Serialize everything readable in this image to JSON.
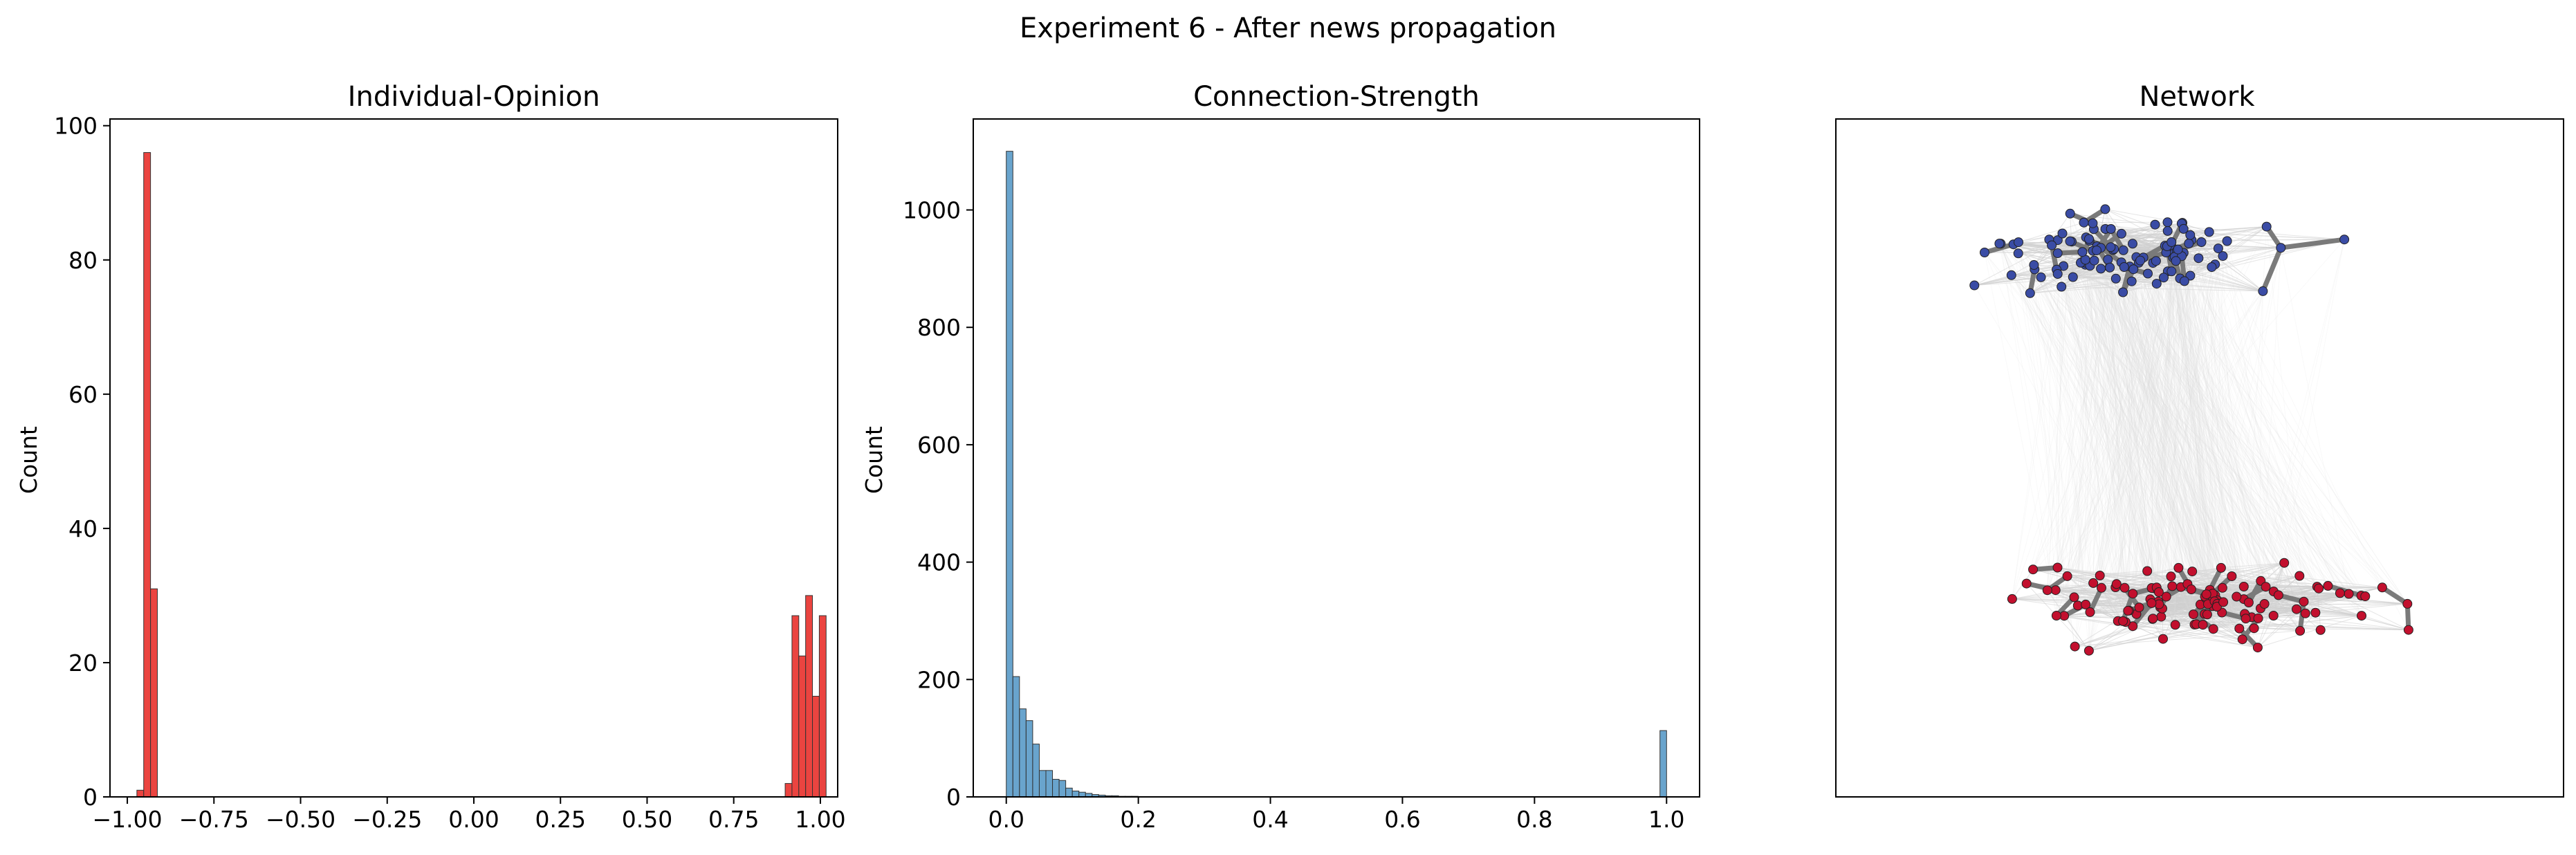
{
  "figure": {
    "title": "Experiment 6 - After news propagation"
  },
  "chart_data": [
    {
      "type": "bar",
      "title": "Individual-Opinion",
      "xlabel": "",
      "ylabel": "Count",
      "xlim": [
        -1.05,
        1.05
      ],
      "ylim": [
        0,
        101
      ],
      "xticks": [
        -1.0,
        -0.75,
        -0.5,
        -0.25,
        0.0,
        0.25,
        0.5,
        0.75,
        1.0
      ],
      "xtick_labels": [
        "−1.00",
        "−0.75",
        "−0.50",
        "−0.25",
        "0.00",
        "0.25",
        "0.50",
        "0.75",
        "1.00"
      ],
      "yticks": [
        0,
        20,
        40,
        60,
        80,
        100
      ],
      "ytick_labels": [
        "0",
        "20",
        "40",
        "60",
        "80",
        "100"
      ],
      "bin_width": 0.0197,
      "bins": [
        {
          "x": -0.9724,
          "count": 1
        },
        {
          "x": -0.9527,
          "count": 96
        },
        {
          "x": -0.933,
          "count": 31
        },
        {
          "x": 0.8984,
          "count": 2
        },
        {
          "x": 0.9181,
          "count": 27
        },
        {
          "x": 0.9378,
          "count": 21
        },
        {
          "x": 0.9575,
          "count": 30
        },
        {
          "x": 0.9772,
          "count": 15
        },
        {
          "x": 0.9969,
          "count": 27
        }
      ],
      "color": "#e8231f",
      "grid": false
    },
    {
      "type": "bar",
      "title": "Connection-Strength",
      "xlabel": "",
      "ylabel": "Count",
      "xlim": [
        -0.05,
        1.05
      ],
      "ylim": [
        0,
        1155
      ],
      "xticks": [
        0.0,
        0.2,
        0.4,
        0.6,
        0.8,
        1.0
      ],
      "xtick_labels": [
        "0.0",
        "0.2",
        "0.4",
        "0.6",
        "0.8",
        "1.0"
      ],
      "yticks": [
        0,
        200,
        400,
        600,
        800,
        1000
      ],
      "ytick_labels": [
        "0",
        "200",
        "400",
        "600",
        "800",
        "1000"
      ],
      "bin_width": 0.01,
      "bins": [
        {
          "x": 0.0,
          "count": 1100
        },
        {
          "x": 0.01,
          "count": 205
        },
        {
          "x": 0.02,
          "count": 150
        },
        {
          "x": 0.03,
          "count": 130
        },
        {
          "x": 0.04,
          "count": 90
        },
        {
          "x": 0.05,
          "count": 45
        },
        {
          "x": 0.06,
          "count": 45
        },
        {
          "x": 0.07,
          "count": 30
        },
        {
          "x": 0.08,
          "count": 28
        },
        {
          "x": 0.09,
          "count": 15
        },
        {
          "x": 0.1,
          "count": 10
        },
        {
          "x": 0.11,
          "count": 8
        },
        {
          "x": 0.12,
          "count": 6
        },
        {
          "x": 0.13,
          "count": 4
        },
        {
          "x": 0.14,
          "count": 3
        },
        {
          "x": 0.15,
          "count": 2
        },
        {
          "x": 0.16,
          "count": 2
        },
        {
          "x": 0.17,
          "count": 1
        },
        {
          "x": 0.18,
          "count": 1
        },
        {
          "x": 0.19,
          "count": 1
        },
        {
          "x": 0.99,
          "count": 113
        }
      ],
      "color": "#4f94c4",
      "grid": false
    },
    {
      "type": "scatter",
      "title": "Network",
      "xlabel": "",
      "ylabel": "",
      "axes_visible": false,
      "groups": [
        {
          "color": "#3a4ca5",
          "center": [
            0.4,
            0.2
          ],
          "spread": [
            0.25,
            0.07
          ],
          "count": 110
        },
        {
          "color": "#c2102e",
          "center": [
            0.5,
            0.71
          ],
          "spread": [
            0.3,
            0.07
          ],
          "count": 120
        }
      ],
      "strong_edge_color": "#7a7a7a",
      "weak_edge_color": "#cfcfcf"
    }
  ]
}
